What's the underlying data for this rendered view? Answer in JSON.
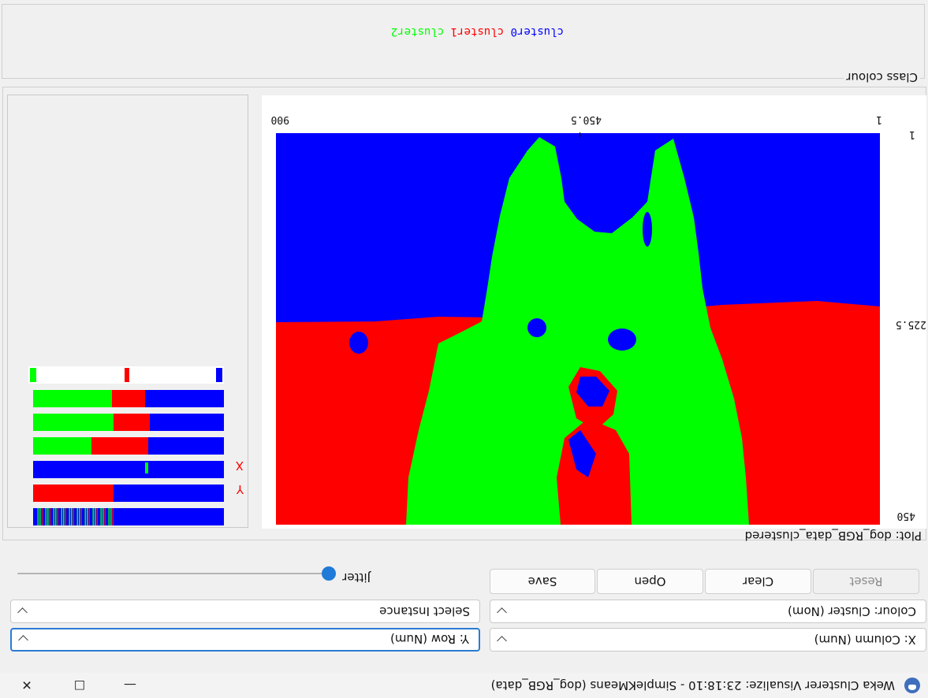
{
  "window": {
    "title": "Weka Clusterer Visualize: 23:18:10 - SimpleKMeans (dog_RGB_data)",
    "minimize_glyph": "—",
    "maximize_glyph": "☐",
    "close_glyph": "✕"
  },
  "controls": {
    "x_axis": "X: Column (Num)",
    "y_axis": "Y: Row (Num)",
    "colour": "Colour: Cluster (Nom)",
    "select": "Select Instance",
    "buttons": {
      "reset": "Reset",
      "clear": "Clear",
      "open": "Open",
      "save": "Save"
    },
    "jitter_label": "Jitter",
    "jitter_value": 0
  },
  "plot": {
    "title": "Plot: dog_RGB_data_clustered",
    "x_ticks": [
      "1",
      "450.5",
      "900"
    ],
    "y_ticks": [
      "1",
      "225.5",
      "450"
    ],
    "attr_markers": {
      "x": "X",
      "y": "Y"
    }
  },
  "class_colour": {
    "title": "Class colour",
    "clusters": [
      {
        "name": "cluster0",
        "color": "#0000ff"
      },
      {
        "name": "cluster1",
        "color": "#ff0000"
      },
      {
        "name": "cluster2",
        "color": "#00ff00"
      }
    ]
  },
  "colors": {
    "blue": "#0000ff",
    "red": "#ff0000",
    "green": "#00ff00",
    "accent": "#1f7ad8"
  }
}
